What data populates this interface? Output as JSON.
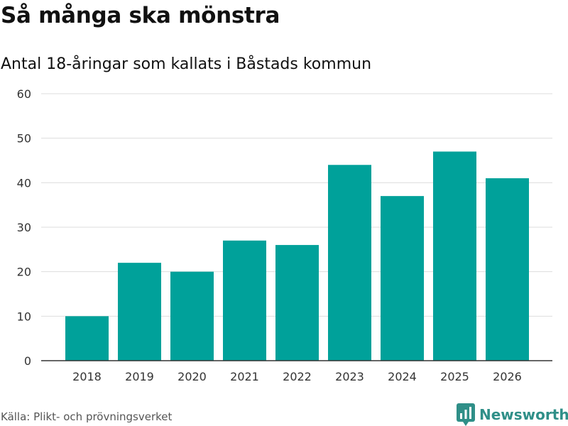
{
  "title": "Så många ska mönstra",
  "subtitle": "Antal 18-åringar som kallats i Båstads kommun",
  "source": "Källa: Plikt- och prövningsverket",
  "brand": {
    "name": "Newsworthy",
    "icon": "newsworthy-logo-icon",
    "color": "#2f8f88"
  },
  "colors": {
    "bar": "#00a19a",
    "grid": "#dddddd",
    "axis": "#333333"
  },
  "chart_data": {
    "type": "bar",
    "title": "Så många ska mönstra",
    "subtitle": "Antal 18-åringar som kallats i Båstads kommun",
    "xlabel": "",
    "ylabel": "",
    "categories": [
      "2018",
      "2019",
      "2020",
      "2021",
      "2022",
      "2023",
      "2024",
      "2025",
      "2026"
    ],
    "values": [
      10,
      22,
      20,
      27,
      26,
      44,
      37,
      47,
      41
    ],
    "ylim": [
      0,
      60
    ],
    "yticks": [
      0,
      10,
      20,
      30,
      40,
      50,
      60
    ],
    "grid": true,
    "legend": "none"
  }
}
